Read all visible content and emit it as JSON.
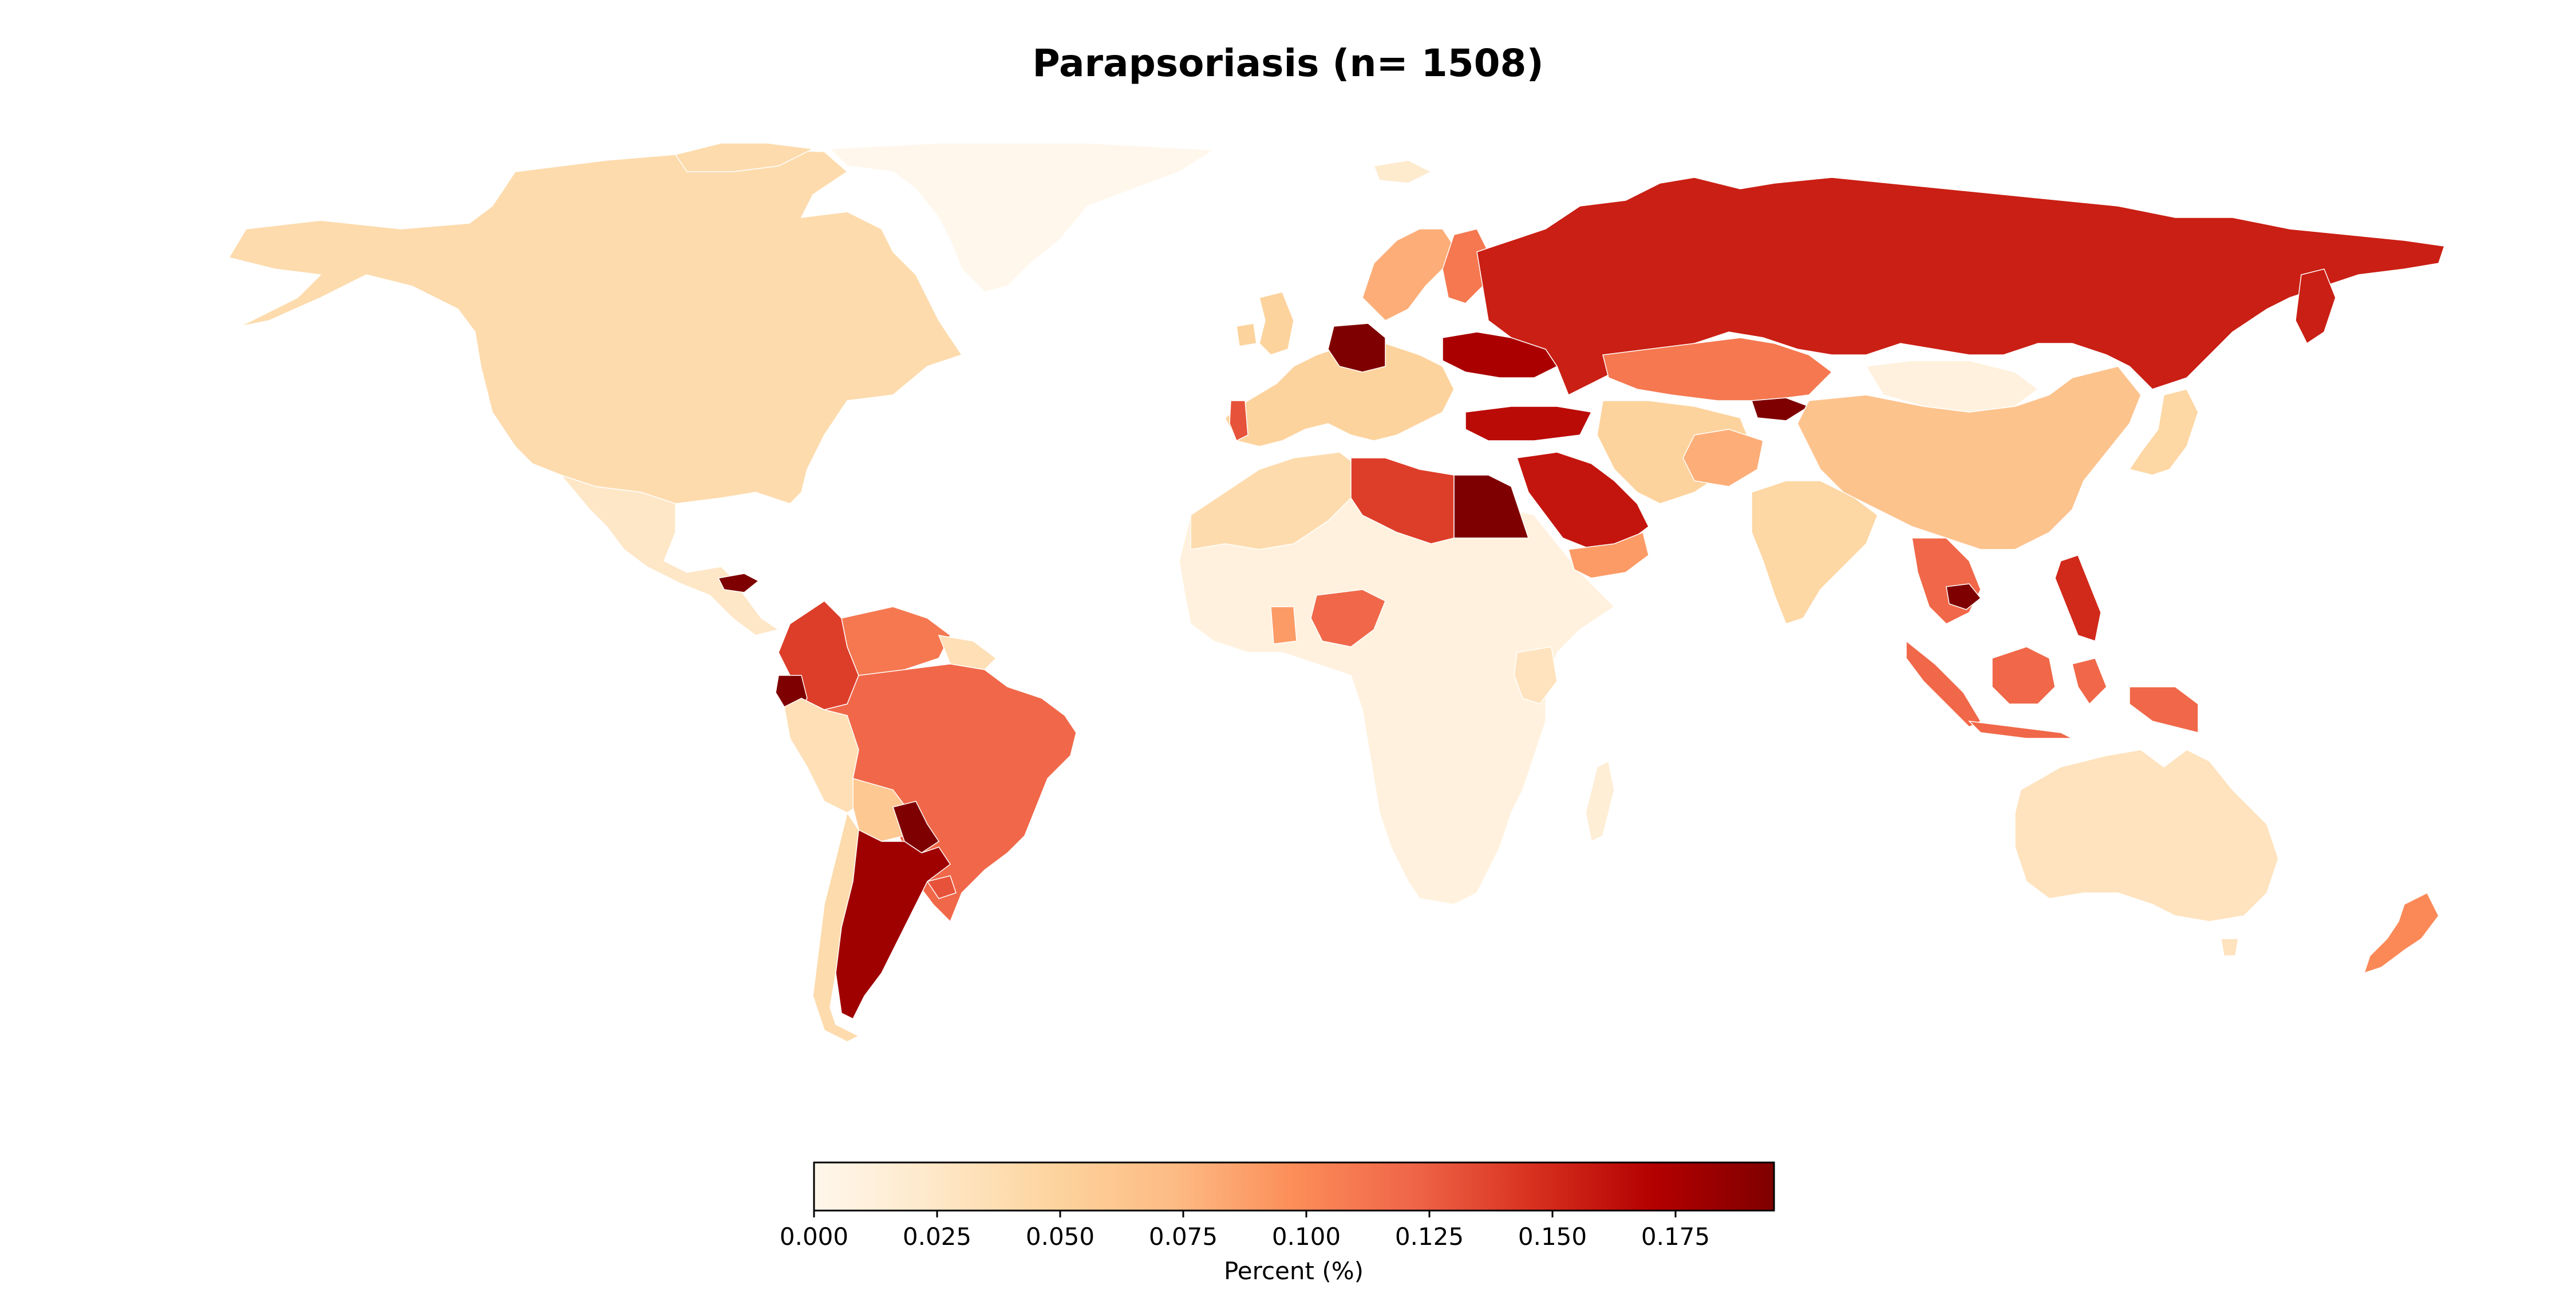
{
  "title": "Parapsoriasis (n= 1508)",
  "colorbar": {
    "label": "Percent (%)",
    "ticks": [
      "0.000",
      "0.025",
      "0.050",
      "0.075",
      "0.100",
      "0.125",
      "0.150",
      "0.175"
    ],
    "min": 0.0,
    "max": 0.195,
    "colormap": "OrRd",
    "stops": [
      "#fff7ec",
      "#fee8c8",
      "#fdd49e",
      "#fdbb84",
      "#fc8d59",
      "#ef6548",
      "#d7301f",
      "#b30000",
      "#7f0000"
    ]
  },
  "regions": [
    {
      "id": "greenland",
      "value": 0.0
    },
    {
      "id": "north-america",
      "value": 0.04
    },
    {
      "id": "mexico",
      "value": 0.025
    },
    {
      "id": "honduras",
      "value": 0.195
    },
    {
      "id": "colombia",
      "value": 0.14
    },
    {
      "id": "ecuador",
      "value": 0.195
    },
    {
      "id": "peru",
      "value": 0.035
    },
    {
      "id": "venezuela",
      "value": 0.11
    },
    {
      "id": "brazil",
      "value": 0.12
    },
    {
      "id": "bolivia",
      "value": 0.06
    },
    {
      "id": "chile",
      "value": 0.04
    },
    {
      "id": "argentina",
      "value": 0.18
    },
    {
      "id": "paraguay",
      "value": 0.195
    },
    {
      "id": "uruguay",
      "value": 0.13
    },
    {
      "id": "africa",
      "value": 0.01
    },
    {
      "id": "north-africa-west",
      "value": 0.04
    },
    {
      "id": "libya",
      "value": 0.14
    },
    {
      "id": "egypt",
      "value": 0.195
    },
    {
      "id": "nigeria",
      "value": 0.12
    },
    {
      "id": "ghana",
      "value": 0.09
    },
    {
      "id": "kenya",
      "value": 0.03
    },
    {
      "id": "madagascar",
      "value": 0.015
    },
    {
      "id": "western-europe",
      "value": 0.05
    },
    {
      "id": "germany",
      "value": 0.195
    },
    {
      "id": "portugal",
      "value": 0.13
    },
    {
      "id": "scandinavia",
      "value": 0.08
    },
    {
      "id": "finland",
      "value": 0.11
    },
    {
      "id": "ukraine",
      "value": 0.175
    },
    {
      "id": "turkey",
      "value": 0.165
    },
    {
      "id": "saudi-arabia",
      "value": 0.16
    },
    {
      "id": "oman",
      "value": 0.09
    },
    {
      "id": "russia",
      "value": 0.155
    },
    {
      "id": "kazakhstan",
      "value": 0.11
    },
    {
      "id": "kyrgyzstan",
      "value": 0.195
    },
    {
      "id": "central-asia",
      "value": 0.05
    },
    {
      "id": "afghanistan",
      "value": 0.08
    },
    {
      "id": "mongolia",
      "value": 0.01
    },
    {
      "id": "china",
      "value": 0.065
    },
    {
      "id": "india",
      "value": 0.045
    },
    {
      "id": "southeast-asia",
      "value": 0.12
    },
    {
      "id": "cambodia",
      "value": 0.195
    },
    {
      "id": "philippines",
      "value": 0.15
    },
    {
      "id": "indonesia",
      "value": 0.12
    },
    {
      "id": "japan",
      "value": 0.045
    },
    {
      "id": "australia",
      "value": 0.03
    },
    {
      "id": "new-zealand",
      "value": 0.1
    },
    {
      "id": "svalbard",
      "value": 0.02
    }
  ]
}
